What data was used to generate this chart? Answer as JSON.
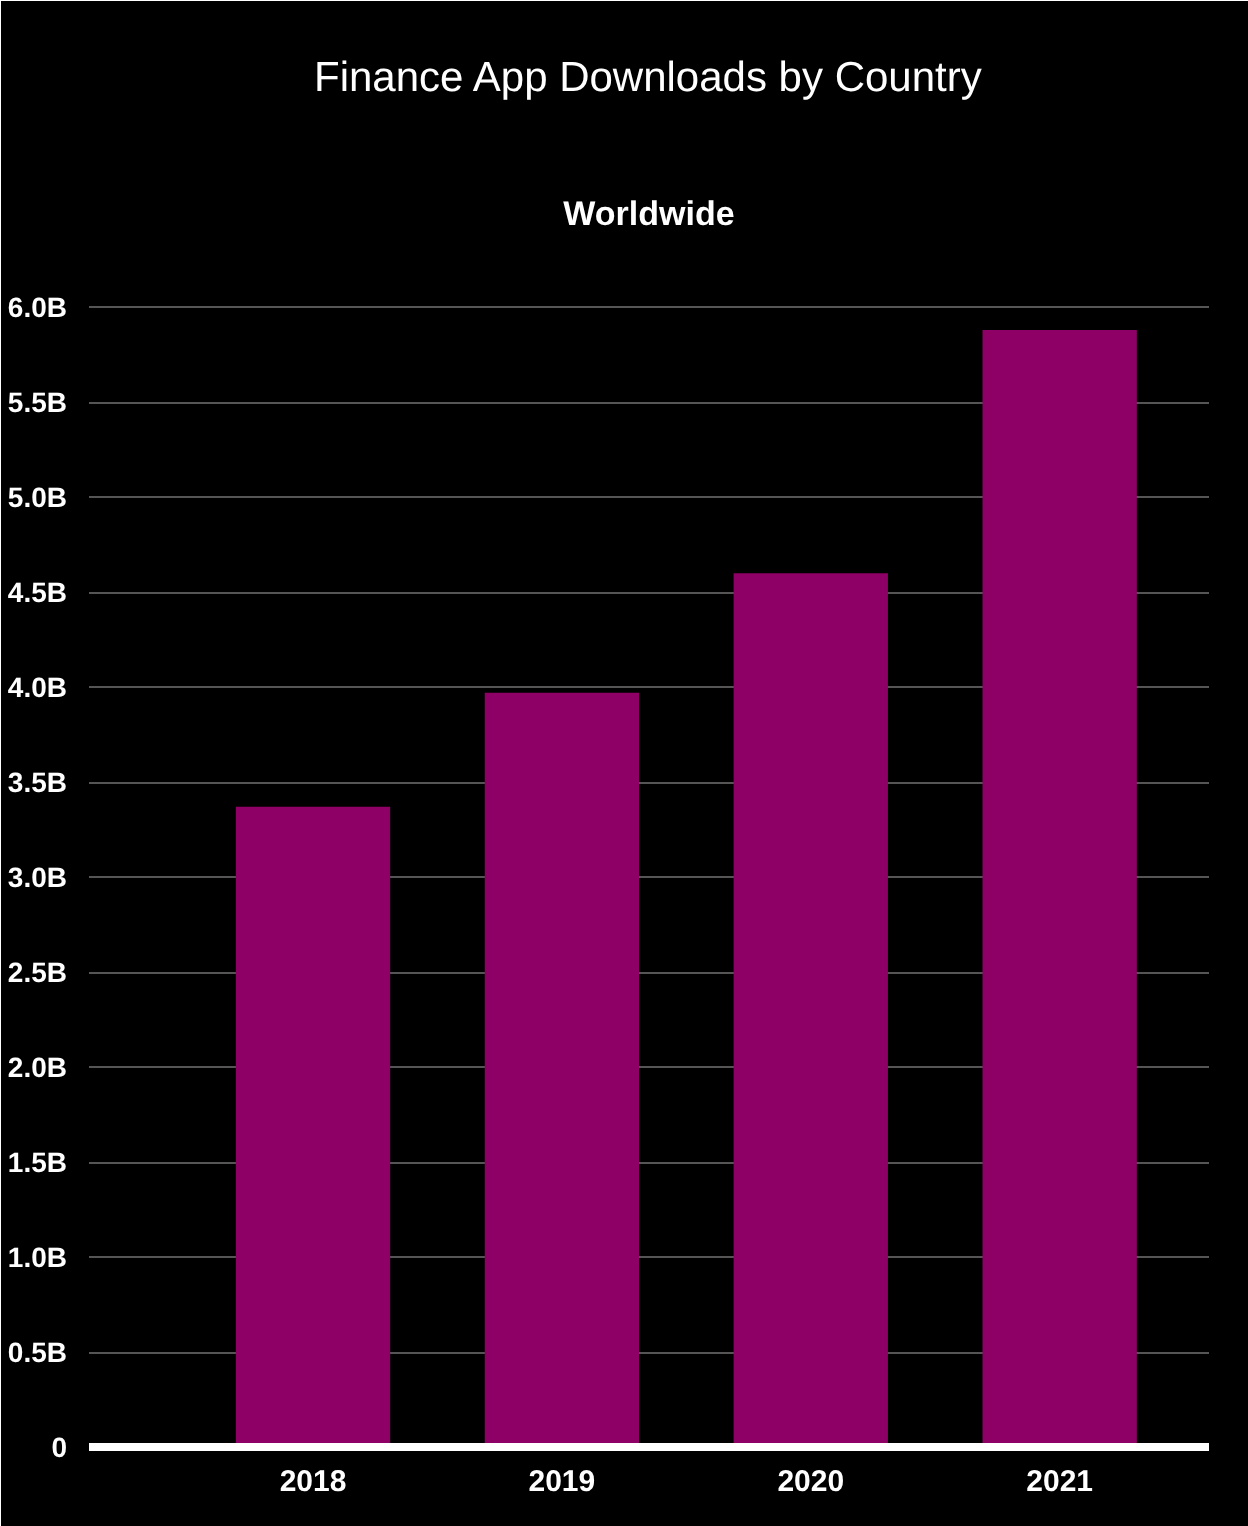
{
  "chart_data": {
    "type": "bar",
    "title": "Finance App Downloads by Country",
    "subtitle": "Worldwide",
    "categories": [
      "2018",
      "2019",
      "2020",
      "2021"
    ],
    "series": [
      {
        "color": "#8e0066",
        "values": [
          3.37,
          3.97,
          4.6,
          5.88
        ]
      }
    ],
    "ylim": [
      0,
      6
    ],
    "yticks": [
      {
        "value": 0,
        "label": "0"
      },
      {
        "value": 0.5,
        "label": "0.5B"
      },
      {
        "value": 1,
        "label": "1.0B"
      },
      {
        "value": 1.5,
        "label": "1.5B"
      },
      {
        "value": 2,
        "label": "2.0B"
      },
      {
        "value": 2.5,
        "label": "2.5B"
      },
      {
        "value": 3,
        "label": "3.0B"
      },
      {
        "value": 3.5,
        "label": "3.5B"
      },
      {
        "value": 4,
        "label": "4.0B"
      },
      {
        "value": 4.5,
        "label": "4.5B"
      },
      {
        "value": 5,
        "label": "5.0B"
      },
      {
        "value": 5.5,
        "label": "5.5B"
      },
      {
        "value": 6,
        "label": "6.0B"
      }
    ],
    "grid": "y"
  }
}
